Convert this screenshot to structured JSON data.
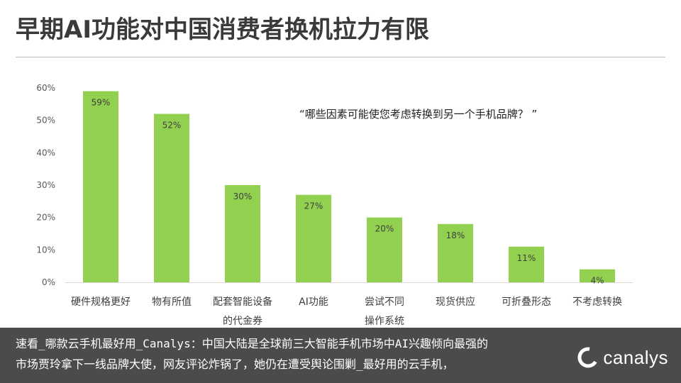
{
  "header": {
    "title": "早期AI功能对中国消费者换机拉力有限"
  },
  "chart_data": {
    "type": "bar",
    "annotation": "“哪些因素可能使您考虑转换到另一个手机品牌？ ”",
    "categories": [
      "硬件规格更好",
      "物有所值",
      "配套智能设备的代金券",
      "AI功能",
      "尝试不同操作系统",
      "现货供应",
      "可折叠形态",
      "不考虑转换"
    ],
    "category_lines": [
      [
        "硬件规格更好"
      ],
      [
        "物有所值"
      ],
      [
        "配套智能设备",
        "的代金券"
      ],
      [
        "AI功能"
      ],
      [
        "尝试不同",
        "操作系统"
      ],
      [
        "现货供应"
      ],
      [
        "可折叠形态"
      ],
      [
        "不考虑转换"
      ]
    ],
    "values": [
      59,
      52,
      30,
      27,
      20,
      18,
      11,
      4
    ],
    "data_labels": [
      "59%",
      "52%",
      "30%",
      "27%",
      "20%",
      "18%",
      "11%",
      "4%"
    ],
    "ylim": [
      0,
      60
    ],
    "yticks": [
      0,
      10,
      20,
      30,
      40,
      50,
      60
    ],
    "ytick_labels": [
      "0%",
      "10%",
      "20%",
      "30%",
      "40%",
      "50%",
      "60%"
    ],
    "bar_color": "#92d050",
    "grid": false,
    "legend": "none"
  },
  "caption": {
    "line1": "速看_哪款云手机最好用_Canalys：中国大陆是全球前三大智能手机市场中AI兴趣倾向最强的",
    "line2": "市场贾玲拿下一线品牌大使，网友评论炸锅了，她仍在遭受舆论围剿_最好用的云手机，"
  },
  "logo": {
    "text": "canalys"
  }
}
